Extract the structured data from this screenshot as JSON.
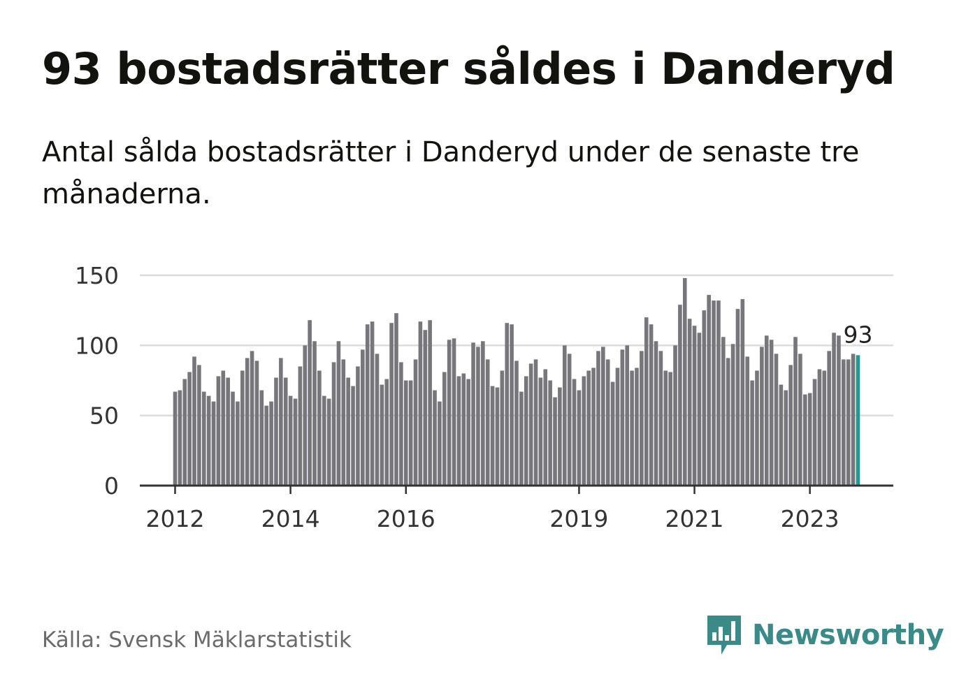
{
  "title": "93 bostadsrätter såldes i Danderyd",
  "subtitle": "Antal sålda bostadsrätter i Danderyd under de senaste tre månaderna.",
  "source": "Källa: Svensk Mäklarstatistik",
  "brand": {
    "name": "Newsworthy",
    "icon": "newsworthy-logo-icon",
    "color": "#3a8a87"
  },
  "colors": {
    "bar": "#77767b",
    "highlight": "#1a9c95",
    "grid": "#dcdcdc",
    "axis": "#333333",
    "text": "#333333"
  },
  "chart_data": {
    "type": "bar",
    "title": "93 bostadsrätter såldes i Danderyd",
    "xlabel": "",
    "ylabel": "",
    "ylim": [
      0,
      150
    ],
    "yticks": [
      0,
      50,
      100,
      150
    ],
    "grid": true,
    "start_period": "2012-01",
    "xtick_labels": [
      {
        "label": "2012",
        "index": 0
      },
      {
        "label": "2014",
        "index": 24
      },
      {
        "label": "2016",
        "index": 48
      },
      {
        "label": "2019",
        "index": 84
      },
      {
        "label": "2021",
        "index": 108
      },
      {
        "label": "2023",
        "index": 132
      }
    ],
    "values": [
      67,
      68,
      76,
      81,
      92,
      86,
      67,
      64,
      60,
      78,
      82,
      77,
      67,
      60,
      82,
      91,
      96,
      89,
      68,
      57,
      60,
      77,
      91,
      77,
      64,
      62,
      85,
      100,
      118,
      103,
      82,
      64,
      62,
      88,
      103,
      90,
      77,
      71,
      85,
      97,
      115,
      117,
      94,
      72,
      76,
      116,
      123,
      88,
      75,
      75,
      90,
      117,
      111,
      118,
      68,
      60,
      81,
      104,
      105,
      78,
      80,
      76,
      102,
      99,
      103,
      90,
      71,
      70,
      82,
      116,
      115,
      89,
      67,
      78,
      87,
      90,
      77,
      83,
      75,
      63,
      70,
      100,
      94,
      76,
      68,
      78,
      82,
      84,
      96,
      99,
      90,
      74,
      84,
      97,
      100,
      82,
      84,
      96,
      120,
      115,
      103,
      96,
      82,
      81,
      100,
      129,
      148,
      119,
      114,
      109,
      125,
      136,
      132,
      132,
      106,
      91,
      101,
      126,
      133,
      92,
      75,
      82,
      99,
      107,
      104,
      94,
      72,
      68,
      86,
      106,
      94,
      65,
      66,
      76,
      83,
      82,
      96,
      109,
      107,
      90,
      90,
      94,
      93
    ],
    "highlight_index": 142,
    "highlight_label": "93"
  }
}
